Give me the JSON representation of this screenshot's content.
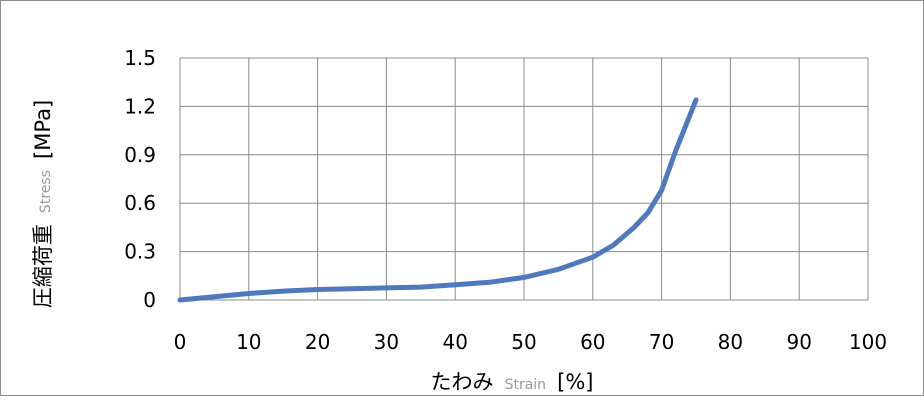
{
  "chart_data": {
    "type": "line",
    "title": "",
    "xlabel": {
      "main": "たわみ",
      "sub": "Strain",
      "unit": "[%]"
    },
    "ylabel": {
      "main": "圧縮荷重",
      "sub": "Stress",
      "unit": "[MPa]"
    },
    "xlim": [
      0,
      100
    ],
    "ylim": [
      0,
      1.5
    ],
    "x_ticks": [
      "0",
      "10",
      "20",
      "30",
      "40",
      "50",
      "60",
      "70",
      "80",
      "90",
      "100"
    ],
    "y_ticks": [
      "0",
      "0.3",
      "0.6",
      "0.9",
      "1.2",
      "1.5"
    ],
    "grid": true,
    "legend": "none",
    "line_color": "#4e79be",
    "series": [
      {
        "x": [
          0,
          5,
          10,
          15,
          20,
          25,
          30,
          35,
          40,
          45,
          50,
          55,
          60,
          63,
          66,
          68,
          70,
          72,
          75
        ],
        "y": [
          0,
          0.02,
          0.04,
          0.055,
          0.065,
          0.07,
          0.075,
          0.08,
          0.095,
          0.11,
          0.14,
          0.19,
          0.265,
          0.34,
          0.45,
          0.54,
          0.68,
          0.92,
          1.24
        ]
      }
    ]
  }
}
